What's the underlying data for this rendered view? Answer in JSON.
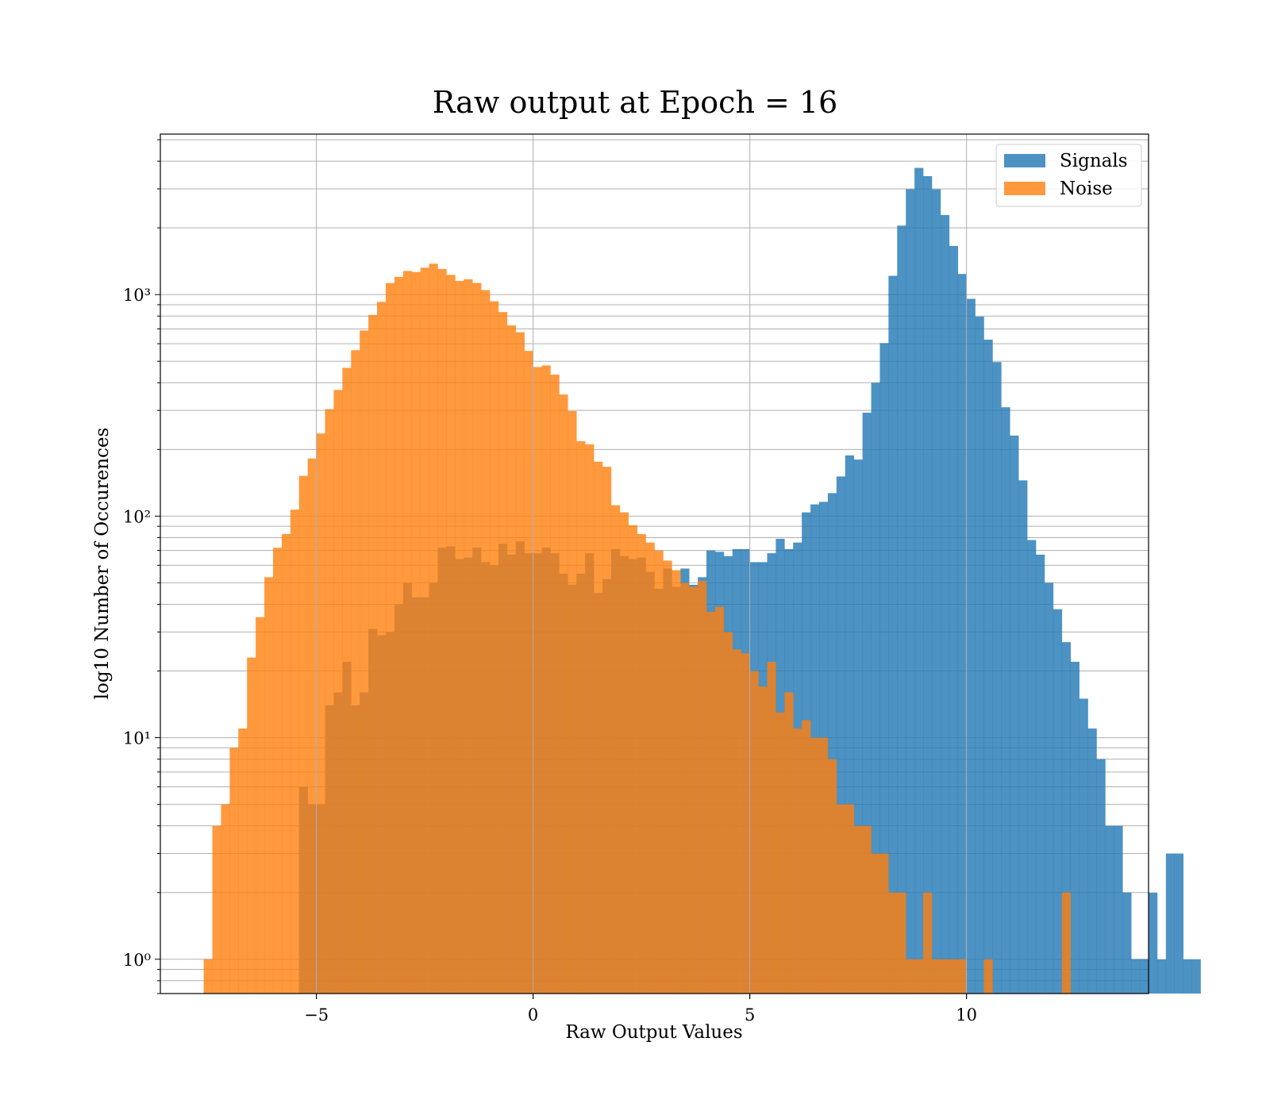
{
  "chart_data": {
    "type": "bar",
    "title": "Raw output at Epoch = 16",
    "xlabel": "Raw Output Values",
    "ylabel": "log10 Number of Occurences",
    "yscale": "log",
    "xlim": [
      -8.6,
      14.2
    ],
    "ylim": [
      0.7,
      5300
    ],
    "x_ticks": [
      -5,
      0,
      5,
      10
    ],
    "x_tick_labels": [
      "−5",
      "0",
      "5",
      "10"
    ],
    "y_ticks": [
      1,
      10,
      100,
      1000
    ],
    "y_tick_labels": [
      "10⁰",
      "10¹",
      "10²",
      "10³"
    ],
    "grid": true,
    "legend_position": "top-right",
    "series": [
      {
        "name": "Signals",
        "color": "#1f77b4",
        "opacity": 0.8,
        "bins_start": -5.4,
        "bin_width": 0.2,
        "counts": [
          6,
          5,
          5,
          14,
          16,
          22,
          14,
          16,
          31,
          29,
          30,
          40,
          50,
          43,
          43,
          50,
          72,
          73,
          64,
          65,
          72,
          62,
          60,
          75,
          67,
          77,
          68,
          68,
          72,
          68,
          55,
          49,
          55,
          68,
          45,
          52,
          71,
          66,
          64,
          65,
          56,
          47,
          58,
          48,
          58,
          49,
          53,
          70,
          69,
          66,
          71,
          71,
          62,
          62,
          68,
          79,
          71,
          76,
          104,
          113,
          116,
          127,
          151,
          188,
          180,
          293,
          400,
          604,
          1215,
          2048,
          2988,
          3731,
          3423,
          2986,
          2286,
          1658,
          1239,
          957,
          795,
          626,
          496,
          310,
          231,
          145,
          78,
          67,
          50,
          38,
          27,
          22,
          15,
          11,
          8,
          4,
          4,
          2,
          1,
          1,
          2,
          1,
          3,
          3,
          1,
          1
        ]
      },
      {
        "name": "Noise",
        "color": "#ff7f0e",
        "opacity": 0.8,
        "bins_start": -7.6,
        "bin_width": 0.2,
        "counts": [
          1,
          4,
          5,
          9,
          11,
          23,
          35,
          53,
          72,
          83,
          107,
          152,
          182,
          236,
          304,
          371,
          467,
          561,
          689,
          809,
          927,
          1127,
          1202,
          1278,
          1265,
          1322,
          1379,
          1305,
          1227,
          1153,
          1172,
          1129,
          1048,
          933,
          834,
          726,
          676,
          557,
          471,
          479,
          435,
          354,
          298,
          218,
          211,
          176,
          167,
          112,
          104,
          91,
          83,
          76,
          70,
          63,
          57,
          50,
          48,
          51,
          37,
          39,
          30,
          25,
          24,
          20,
          17,
          22,
          13,
          16,
          11,
          12,
          10,
          10,
          8,
          5,
          5,
          4,
          4,
          3,
          3,
          2,
          2,
          1,
          1,
          2,
          1,
          1,
          1,
          1,
          0,
          0,
          1,
          0,
          0,
          0,
          0,
          0,
          0,
          0,
          0,
          2,
          0,
          0,
          0,
          0,
          0,
          0,
          0,
          0,
          0,
          0,
          0,
          0,
          0,
          0,
          0,
          0,
          0
        ]
      }
    ]
  }
}
